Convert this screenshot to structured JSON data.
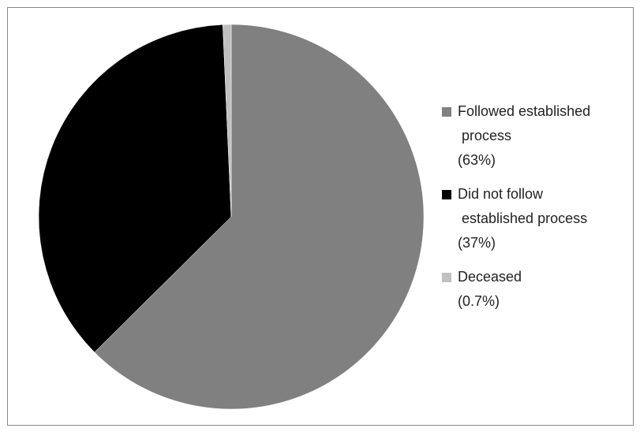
{
  "chart_data": {
    "type": "pie",
    "categories": [
      "Followed established process",
      "Did not follow established process",
      "Deceased"
    ],
    "values": [
      63,
      37,
      0.7
    ],
    "value_labels": [
      "(63%)",
      "(37%)",
      "(0.7%)"
    ],
    "colors": [
      "#808080",
      "#000000",
      "#c0c0c0"
    ],
    "legend": "right"
  }
}
